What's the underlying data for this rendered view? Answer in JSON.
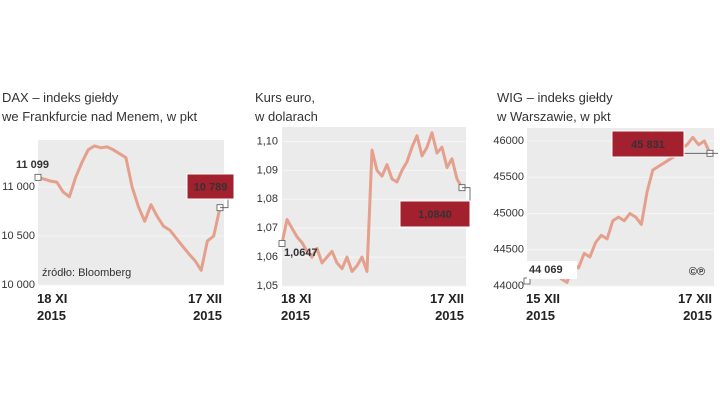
{
  "chart_data": [
    {
      "type": "line",
      "title": "DAX – indeks giełdy\nwe Frankfurcie nad Menem, w pkt",
      "categories": [
        "18 XI\n2015",
        null,
        null,
        null,
        null,
        null,
        null,
        null,
        null,
        null,
        null,
        null,
        null,
        null,
        null,
        null,
        null,
        null,
        null,
        null,
        null,
        null,
        null,
        null,
        null,
        null,
        null,
        null,
        null,
        "17 XII\n2015"
      ],
      "values": [
        11099,
        11080,
        11060,
        11050,
        10950,
        10900,
        11100,
        11250,
        11380,
        11420,
        11400,
        11410,
        11380,
        11340,
        11300,
        11000,
        10800,
        10650,
        10820,
        10700,
        10600,
        10560,
        10480,
        10400,
        10320,
        10250,
        10150,
        10450,
        10500,
        10789
      ],
      "value_labels": [
        "11 099",
        null,
        null,
        null,
        null,
        null,
        null,
        null,
        null,
        null,
        null,
        null,
        null,
        null,
        null,
        null,
        null,
        null,
        null,
        null,
        null,
        null,
        null,
        null,
        null,
        null,
        null,
        null,
        null,
        "10 789"
      ],
      "color": "#e4a08c",
      "ylim": [
        10000,
        11480
      ],
      "yticks": [
        {
          "value": 10000,
          "label": "10 000"
        },
        {
          "value": 10500,
          "label": "10 500"
        },
        {
          "value": 11000,
          "label": "11 000"
        }
      ],
      "grid": true,
      "source": "źródło: Bloomberg"
    },
    {
      "type": "line",
      "title": "Kurs euro,\nw dolarach",
      "categories": [
        "18 XI\n2015",
        null,
        null,
        null,
        null,
        null,
        null,
        null,
        null,
        null,
        null,
        null,
        null,
        null,
        null,
        null,
        null,
        null,
        null,
        null,
        null,
        null,
        null,
        null,
        null,
        null,
        null,
        null,
        null,
        null,
        null,
        null,
        null,
        null,
        null,
        null,
        "17 XII\n2015"
      ],
      "values": [
        1.0647,
        1.073,
        1.07,
        1.067,
        1.065,
        1.062,
        1.06,
        1.063,
        1.058,
        1.06,
        1.062,
        1.058,
        1.056,
        1.06,
        1.055,
        1.057,
        1.06,
        1.055,
        1.097,
        1.09,
        1.088,
        1.092,
        1.087,
        1.086,
        1.09,
        1.093,
        1.098,
        1.102,
        1.095,
        1.098,
        1.103,
        1.096,
        1.098,
        1.091,
        1.094,
        1.087,
        1.084
      ],
      "value_labels": [
        "1,0647",
        null,
        null,
        null,
        null,
        null,
        null,
        null,
        null,
        null,
        null,
        null,
        null,
        null,
        null,
        null,
        null,
        null,
        null,
        null,
        null,
        null,
        null,
        null,
        null,
        null,
        null,
        null,
        null,
        null,
        null,
        null,
        null,
        null,
        null,
        null,
        "1,0840"
      ],
      "color": "#e4a08c",
      "ylim": [
        1.05,
        1.105
      ],
      "yticks": [
        {
          "value": 1.05,
          "label": "1,05"
        },
        {
          "value": 1.06,
          "label": "1,06"
        },
        {
          "value": 1.07,
          "label": "1,07"
        },
        {
          "value": 1.08,
          "label": "1,08"
        },
        {
          "value": 1.09,
          "label": "1,09"
        },
        {
          "value": 1.1,
          "label": "1,10"
        }
      ],
      "grid": true
    },
    {
      "type": "line",
      "title": "WIG – indeks giełdy\nw Warszawie, w pkt",
      "categories": [
        "15 XII\n2015",
        null,
        null,
        null,
        null,
        null,
        null,
        null,
        null,
        null,
        null,
        null,
        null,
        null,
        null,
        null,
        null,
        null,
        null,
        null,
        null,
        null,
        null,
        null,
        null,
        null,
        null,
        null,
        null,
        null,
        null,
        null,
        "17 XII\n2015"
      ],
      "values": [
        44069,
        44300,
        44280,
        44250,
        44300,
        44200,
        44100,
        44050,
        44300,
        44250,
        44450,
        44400,
        44600,
        44700,
        44650,
        44900,
        44950,
        44900,
        45000,
        44950,
        44850,
        45300,
        45600,
        45650,
        45700,
        45750,
        45800,
        45900,
        45950,
        46050,
        45950,
        46000,
        45831
      ],
      "value_labels": [
        "44 069",
        null,
        null,
        null,
        null,
        null,
        null,
        null,
        null,
        null,
        null,
        null,
        null,
        null,
        null,
        null,
        null,
        null,
        null,
        null,
        null,
        null,
        null,
        null,
        null,
        null,
        null,
        null,
        null,
        null,
        null,
        null,
        "45 831"
      ],
      "color": "#e4a08c",
      "ylim": [
        44000,
        46180
      ],
      "yticks": [
        44000,
        44500,
        45000,
        45500,
        46000
      ],
      "grid": true,
      "logo": "©℗"
    }
  ]
}
